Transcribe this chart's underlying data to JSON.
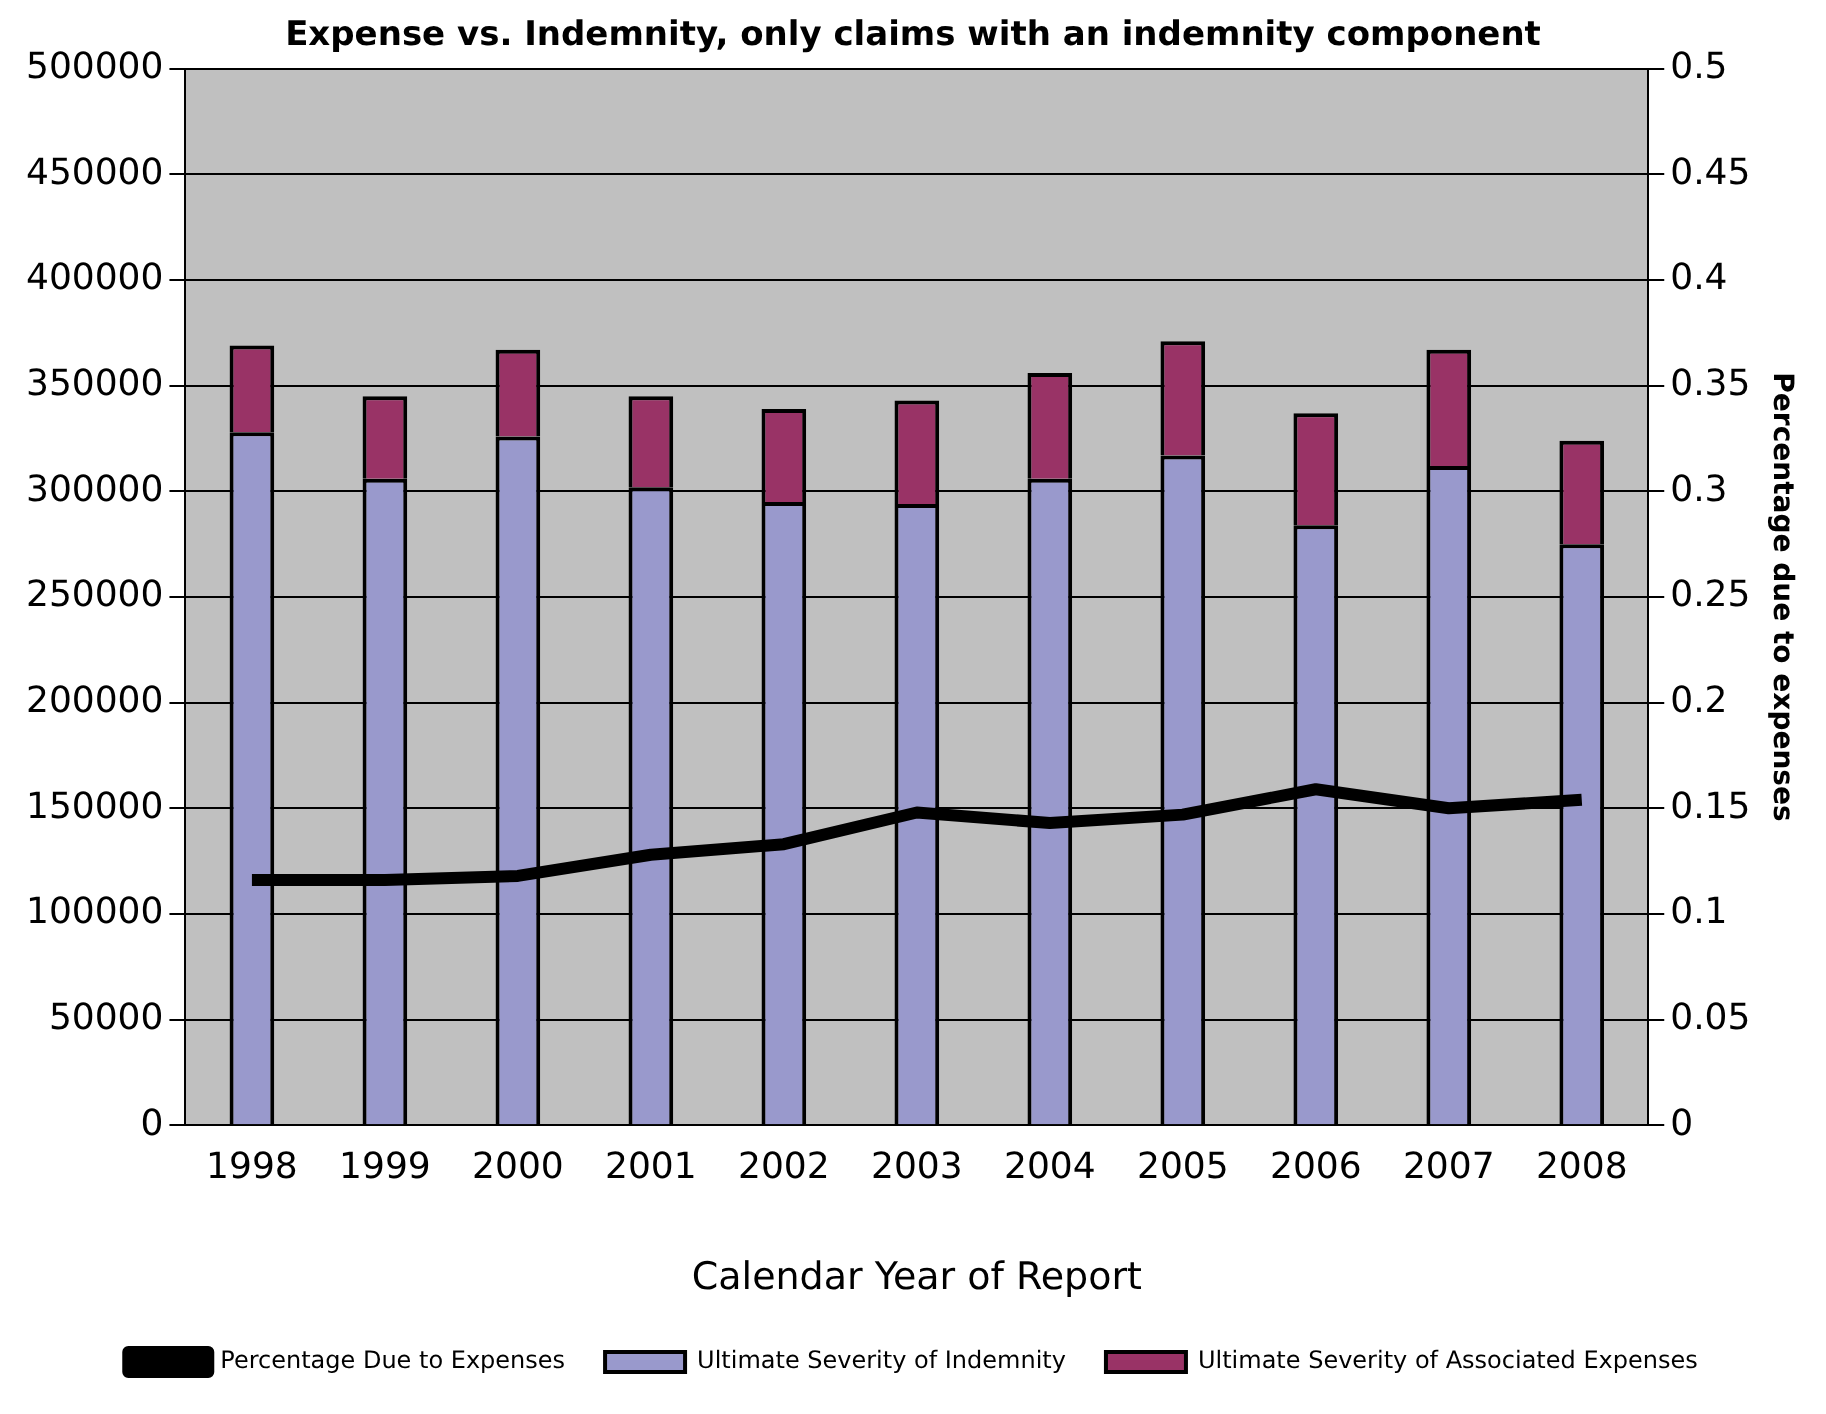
{
  "chart_data": {
    "type": "bar",
    "title": "Expense vs. Indemnity, only claims with an indemnity component",
    "xlabel": "Calendar Year of Report",
    "y2label": "Percentage due to expenses",
    "categories": [
      "1998",
      "1999",
      "2000",
      "2001",
      "2002",
      "2003",
      "2004",
      "2005",
      "2006",
      "2007",
      "2008"
    ],
    "stacked": true,
    "series": [
      {
        "name": "Ultimate Severity of Indemnity",
        "color": "#9999cc",
        "values": [
          328000,
          306000,
          326000,
          302000,
          295000,
          294000,
          306000,
          317000,
          284000,
          312000,
          275000
        ]
      },
      {
        "name": "Ultimate Severity of Associated Expenses",
        "color": "#993366",
        "values": [
          41000,
          39000,
          41000,
          43000,
          44000,
          49000,
          50000,
          54000,
          53000,
          55000,
          49000
        ]
      },
      {
        "name": "Percentage Due to Expenses",
        "type": "line",
        "axis": "y2",
        "color": "#000000",
        "values": [
          0.116,
          0.116,
          0.118,
          0.128,
          0.133,
          0.148,
          0.143,
          0.147,
          0.159,
          0.15,
          0.154
        ]
      }
    ],
    "ylim": [
      0,
      500000
    ],
    "yticks": [
      0,
      50000,
      100000,
      150000,
      200000,
      250000,
      300000,
      350000,
      400000,
      450000,
      500000
    ],
    "y2lim": [
      0,
      0.5
    ],
    "y2ticks": [
      0,
      0.05,
      0.1,
      0.15,
      0.2,
      0.25,
      0.3,
      0.35,
      0.4,
      0.45,
      0.5
    ],
    "grid": "y",
    "legend": "bottom",
    "marker": "none",
    "line_style": "solid"
  }
}
